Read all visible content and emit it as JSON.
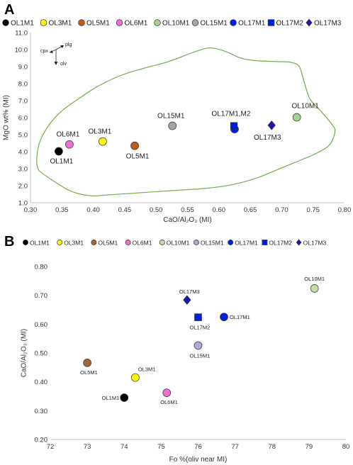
{
  "chart_data": [
    {
      "panel": "A",
      "type": "scatter",
      "legend_position": "top",
      "xlabel": "CaO/Al₂O₃ (MI)",
      "ylabel": "MgO wt% (MI)",
      "xlim": [
        0.3,
        0.8
      ],
      "ylim": [
        1.0,
        11.0
      ],
      "xticks": [
        "0.30",
        "0.35",
        "0.40",
        "0.45",
        "0.50",
        "0.55",
        "0.60",
        "0.65",
        "0.70",
        "0.75",
        "0.80"
      ],
      "yticks": [
        "1.0",
        "2.0",
        "3.0",
        "4.0",
        "5.0",
        "6.0",
        "7.0",
        "8.0",
        "9.0",
        "10.0",
        "11.0"
      ],
      "grid": false,
      "series": [
        {
          "name": "OL1M1",
          "marker": "circle",
          "color": "#000000",
          "points": [
            {
              "x": 0.345,
              "y": 4.02
            }
          ]
        },
        {
          "name": "OL3M1",
          "marker": "circle",
          "color": "#ffff00",
          "points": [
            {
              "x": 0.415,
              "y": 4.6
            }
          ]
        },
        {
          "name": "OL5M1",
          "marker": "circle",
          "color": "#c55a11",
          "points": [
            {
              "x": 0.466,
              "y": 4.35
            }
          ]
        },
        {
          "name": "OL6M1",
          "marker": "circle",
          "color": "#ee6fd0",
          "points": [
            {
              "x": 0.362,
              "y": 4.43
            }
          ]
        },
        {
          "name": "OL10M1",
          "marker": "circle",
          "color": "#a9d18e",
          "points": [
            {
              "x": 0.724,
              "y": 6.02
            }
          ]
        },
        {
          "name": "OL15M1",
          "marker": "circle",
          "color": "#a5a5a5",
          "points": [
            {
              "x": 0.526,
              "y": 5.52
            }
          ]
        },
        {
          "name": "OL17M1",
          "marker": "circle",
          "color": "#0020e0",
          "points": [
            {
              "x": 0.625,
              "y": 5.33
            }
          ]
        },
        {
          "name": "OL17M2",
          "marker": "square",
          "color": "#0020e0",
          "points": [
            {
              "x": 0.624,
              "y": 5.52
            }
          ]
        },
        {
          "name": "OL17M3",
          "marker": "diamond",
          "color": "#1a1aa8",
          "points": [
            {
              "x": 0.684,
              "y": 5.55
            }
          ]
        }
      ],
      "point_labels": [
        {
          "text": "OL1M1",
          "x": 0.345,
          "y": 4.02
        },
        {
          "text": "OL6M1",
          "x": 0.362,
          "y": 4.43
        },
        {
          "text": "OL3M1",
          "x": 0.415,
          "y": 4.6
        },
        {
          "text": "OL5M1",
          "x": 0.466,
          "y": 4.35
        },
        {
          "text": "OL15M1",
          "x": 0.526,
          "y": 5.52
        },
        {
          "text": "OL17M1,M2",
          "x": 0.625,
          "y": 5.52
        },
        {
          "text": "OL17M3",
          "x": 0.684,
          "y": 5.55
        },
        {
          "text": "OL10M1",
          "x": 0.724,
          "y": 6.02
        }
      ],
      "envelope": [
        [
          0.312,
          3.0
        ],
        [
          0.31,
          3.6
        ],
        [
          0.315,
          4.6
        ],
        [
          0.33,
          5.6
        ],
        [
          0.35,
          6.4
        ],
        [
          0.38,
          7.2
        ],
        [
          0.41,
          7.9
        ],
        [
          0.445,
          8.5
        ],
        [
          0.48,
          8.9
        ],
        [
          0.52,
          9.3
        ],
        [
          0.56,
          9.85
        ],
        [
          0.585,
          10.1
        ],
        [
          0.61,
          9.9
        ],
        [
          0.635,
          9.5
        ],
        [
          0.66,
          9.35
        ],
        [
          0.69,
          9.3
        ],
        [
          0.715,
          9.25
        ],
        [
          0.728,
          9.0
        ],
        [
          0.735,
          8.2
        ],
        [
          0.745,
          7.1
        ],
        [
          0.762,
          6.4
        ],
        [
          0.778,
          5.7
        ],
        [
          0.785,
          5.2
        ],
        [
          0.776,
          4.4
        ],
        [
          0.755,
          3.9
        ],
        [
          0.73,
          3.5
        ],
        [
          0.7,
          3.05
        ],
        [
          0.66,
          2.45
        ],
        [
          0.62,
          2.05
        ],
        [
          0.58,
          1.85
        ],
        [
          0.52,
          1.7
        ],
        [
          0.46,
          1.55
        ],
        [
          0.42,
          1.45
        ],
        [
          0.4,
          1.4
        ],
        [
          0.38,
          1.5
        ],
        [
          0.36,
          1.75
        ],
        [
          0.34,
          2.2
        ],
        [
          0.32,
          2.7
        ]
      ],
      "inset": {
        "labels": [
          "plg",
          "cpx",
          "olv"
        ]
      }
    },
    {
      "panel": "B",
      "type": "scatter",
      "legend_position": "top",
      "xlabel": "Fo %(oliv near MI)",
      "ylabel": "CaO/Al₂O₃ (MI)",
      "xlim": [
        72,
        80
      ],
      "ylim": [
        0.2,
        0.8
      ],
      "xticks": [
        "72",
        "73",
        "74",
        "75",
        "76",
        "77",
        "78",
        "79",
        "80"
      ],
      "yticks": [
        "0.20",
        "0.30",
        "0.40",
        "0.50",
        "0.60",
        "0.70",
        "0.80"
      ],
      "grid": false,
      "series": [
        {
          "name": "OL1M1",
          "marker": "circle",
          "color": "#000000",
          "points": [
            {
              "x": 74.0,
              "y": 0.345
            }
          ]
        },
        {
          "name": "OL3M1",
          "marker": "circle",
          "color": "#ffff00",
          "points": [
            {
              "x": 74.3,
              "y": 0.415
            }
          ]
        },
        {
          "name": "OL5M1",
          "marker": "circle",
          "color": "#a0683a",
          "points": [
            {
              "x": 73.0,
              "y": 0.466
            }
          ]
        },
        {
          "name": "OL6M1",
          "marker": "circle",
          "color": "#ee6fd0",
          "points": [
            {
              "x": 75.15,
              "y": 0.362
            }
          ]
        },
        {
          "name": "OL10M1",
          "marker": "circle",
          "color": "#c5dca0",
          "points": [
            {
              "x": 79.15,
              "y": 0.724
            }
          ]
        },
        {
          "name": "OL15M1",
          "marker": "circle",
          "color": "#b4a7d6",
          "points": [
            {
              "x": 76.0,
              "y": 0.526
            }
          ]
        },
        {
          "name": "OL17M1",
          "marker": "circle",
          "color": "#0020e0",
          "points": [
            {
              "x": 76.7,
              "y": 0.625
            }
          ]
        },
        {
          "name": "OL17M2",
          "marker": "square",
          "color": "#0020e0",
          "points": [
            {
              "x": 76.0,
              "y": 0.624
            }
          ]
        },
        {
          "name": "OL17M3",
          "marker": "diamond",
          "color": "#1a1aa8",
          "points": [
            {
              "x": 75.7,
              "y": 0.684
            }
          ]
        }
      ],
      "point_labels": [
        {
          "text": "OL1M1",
          "x": 74.0,
          "y": 0.345
        },
        {
          "text": "OL3M1",
          "x": 74.3,
          "y": 0.415
        },
        {
          "text": "OL5M1",
          "x": 73.0,
          "y": 0.466
        },
        {
          "text": "OL6M1",
          "x": 75.15,
          "y": 0.362
        },
        {
          "text": "OL10M1",
          "x": 79.15,
          "y": 0.724
        },
        {
          "text": "OL15M1",
          "x": 76.0,
          "y": 0.526
        },
        {
          "text": "OL17M1",
          "x": 76.7,
          "y": 0.625
        },
        {
          "text": "OL17M2",
          "x": 76.0,
          "y": 0.624
        },
        {
          "text": "OL17M3",
          "x": 75.7,
          "y": 0.684
        }
      ]
    }
  ]
}
